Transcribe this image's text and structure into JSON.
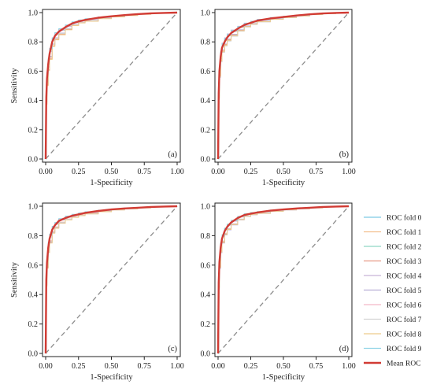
{
  "chart_data": [
    {
      "panel": "(a)",
      "type": "line",
      "xlabel": "1-Specificity",
      "ylabel": "Sensitivity",
      "xlim": [
        0,
        1
      ],
      "ylim": [
        0,
        1
      ],
      "xticks": [
        "0.00",
        "0.25",
        "0.50",
        "0.75",
        "1.00"
      ],
      "yticks": [
        "0.0",
        "0.2",
        "0.4",
        "0.6",
        "0.8",
        "1.0"
      ],
      "grid": false,
      "mean_roc": {
        "name": "Mean ROC",
        "x": [
          0,
          0.005,
          0.01,
          0.02,
          0.03,
          0.05,
          0.07,
          0.1,
          0.15,
          0.2,
          0.25,
          0.3,
          0.4,
          0.5,
          0.6,
          0.7,
          0.8,
          0.9,
          1.0
        ],
        "y": [
          0,
          0.42,
          0.55,
          0.65,
          0.72,
          0.8,
          0.84,
          0.87,
          0.9,
          0.925,
          0.94,
          0.95,
          0.965,
          0.975,
          0.983,
          0.99,
          0.995,
          0.998,
          1.0
        ]
      },
      "fold_spread": [
        0.07,
        -0.06,
        0.05,
        -0.08,
        0.03,
        -0.04,
        0.06,
        -0.05,
        -0.09,
        0.08
      ],
      "chance_line": {
        "x": [
          0,
          1
        ],
        "y": [
          0,
          1
        ]
      }
    },
    {
      "panel": "(b)",
      "type": "line",
      "xlabel": "1-Specificity",
      "ylabel": "",
      "xlim": [
        0,
        1
      ],
      "ylim": [
        0,
        1
      ],
      "xticks": [
        "0.00",
        "0.25",
        "0.50",
        "0.75",
        "1.00"
      ],
      "yticks": [
        "0.0",
        "0.2",
        "0.4",
        "0.6",
        "0.8",
        "1.0"
      ],
      "grid": false,
      "mean_roc": {
        "name": "Mean ROC",
        "x": [
          0,
          0.005,
          0.01,
          0.02,
          0.03,
          0.05,
          0.07,
          0.1,
          0.15,
          0.2,
          0.25,
          0.3,
          0.4,
          0.5,
          0.6,
          0.7,
          0.8,
          0.9,
          1.0
        ],
        "y": [
          0,
          0.45,
          0.6,
          0.7,
          0.76,
          0.8,
          0.83,
          0.86,
          0.89,
          0.915,
          0.93,
          0.945,
          0.96,
          0.97,
          0.98,
          0.988,
          0.994,
          0.998,
          1.0
        ]
      },
      "fold_spread": [
        0.06,
        -0.07,
        0.04,
        -0.05,
        0.08,
        -0.03,
        0.05,
        -0.08,
        -0.06,
        0.07
      ],
      "chance_line": {
        "x": [
          0,
          1
        ],
        "y": [
          0,
          1
        ]
      }
    },
    {
      "panel": "(c)",
      "type": "line",
      "xlabel": "1-Specificity",
      "ylabel": "Sensitivity",
      "xlim": [
        0,
        1
      ],
      "ylim": [
        0,
        1
      ],
      "xticks": [
        "0.00",
        "0.25",
        "0.50",
        "0.75",
        "1.00"
      ],
      "yticks": [
        "0.0",
        "0.2",
        "0.4",
        "0.6",
        "0.8",
        "1.0"
      ],
      "grid": false,
      "mean_roc": {
        "name": "Mean ROC",
        "x": [
          0,
          0.005,
          0.01,
          0.02,
          0.03,
          0.05,
          0.07,
          0.1,
          0.15,
          0.2,
          0.25,
          0.3,
          0.4,
          0.5,
          0.6,
          0.7,
          0.8,
          0.9,
          1.0
        ],
        "y": [
          0,
          0.5,
          0.62,
          0.72,
          0.78,
          0.84,
          0.87,
          0.9,
          0.92,
          0.935,
          0.945,
          0.955,
          0.968,
          0.978,
          0.985,
          0.99,
          0.995,
          0.998,
          1.0
        ]
      },
      "fold_spread": [
        0.05,
        -0.06,
        0.07,
        -0.04,
        0.03,
        -0.07,
        0.06,
        -0.05,
        -0.08,
        0.08
      ],
      "chance_line": {
        "x": [
          0,
          1
        ],
        "y": [
          0,
          1
        ]
      }
    },
    {
      "panel": "(d)",
      "type": "line",
      "xlabel": "1-Specificity",
      "ylabel": "",
      "xlim": [
        0,
        1
      ],
      "ylim": [
        0,
        1
      ],
      "xticks": [
        "0.00",
        "0.25",
        "0.50",
        "0.75",
        "1.00"
      ],
      "yticks": [
        "0.0",
        "0.2",
        "0.4",
        "0.6",
        "0.8",
        "1.0"
      ],
      "grid": false,
      "mean_roc": {
        "name": "Mean ROC",
        "x": [
          0,
          0.005,
          0.01,
          0.02,
          0.03,
          0.05,
          0.07,
          0.1,
          0.15,
          0.2,
          0.25,
          0.3,
          0.4,
          0.5,
          0.6,
          0.7,
          0.8,
          0.9,
          1.0
        ],
        "y": [
          0,
          0.48,
          0.62,
          0.72,
          0.78,
          0.83,
          0.86,
          0.89,
          0.92,
          0.94,
          0.95,
          0.958,
          0.97,
          0.978,
          0.985,
          0.99,
          0.995,
          0.998,
          1.0
        ]
      },
      "fold_spread": [
        0.06,
        -0.05,
        0.07,
        -0.06,
        0.04,
        -0.08,
        0.05,
        -0.04,
        -0.07,
        0.06
      ],
      "chance_line": {
        "x": [
          0,
          1
        ],
        "y": [
          0,
          1
        ]
      }
    }
  ],
  "legend": {
    "placement": "right of the bottom-right panel",
    "entries": [
      {
        "label": "ROC fold 0",
        "color": "#7ec9e3"
      },
      {
        "label": "ROC fold 1",
        "color": "#f3c08e"
      },
      {
        "label": "ROC fold 2",
        "color": "#8fd6c4"
      },
      {
        "label": "ROC fold 3",
        "color": "#e89a86"
      },
      {
        "label": "ROC fold 4",
        "color": "#c7b4d8"
      },
      {
        "label": "ROC fold 5",
        "color": "#b8aed6"
      },
      {
        "label": "ROC fold 6",
        "color": "#f3b8c8"
      },
      {
        "label": "ROC fold 7",
        "color": "#d2d2d2"
      },
      {
        "label": "ROC fold 8",
        "color": "#eecb8a"
      },
      {
        "label": "ROC fold 9",
        "color": "#8fd3e6"
      },
      {
        "label": "Mean ROC",
        "color": "#d13b34"
      }
    ]
  },
  "colors": {
    "mean_roc": "#d13b34",
    "chance_line": "#8c8c8c",
    "axis": "#222222"
  }
}
